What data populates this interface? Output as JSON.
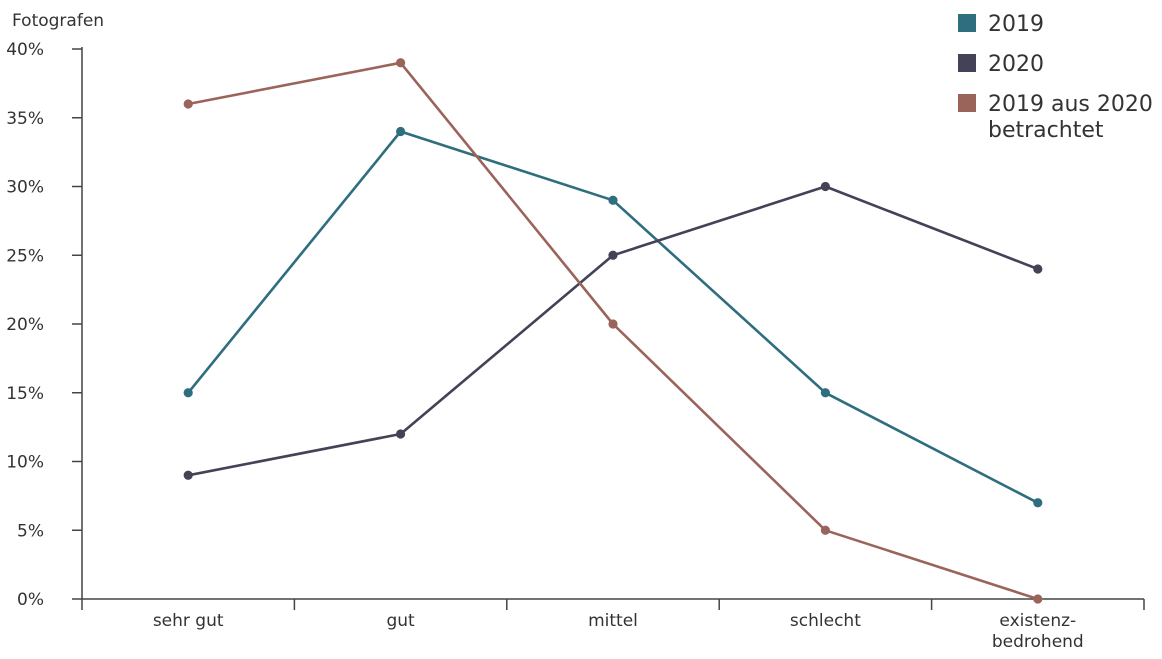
{
  "chart_data": {
    "type": "line",
    "ylabel": "Fotografen",
    "ylim": [
      0,
      40
    ],
    "y_ticks": [
      "0%",
      "5%",
      "10%",
      "15%",
      "20%",
      "25%",
      "30%",
      "35%",
      "40%"
    ],
    "categories": [
      [
        "sehr gut"
      ],
      [
        "gut"
      ],
      [
        "mittel"
      ],
      [
        "schlecht"
      ],
      [
        "existenz-",
        "bedrohend"
      ]
    ],
    "legend_position": "top-right",
    "series": [
      {
        "name": "2019",
        "color": "#2e6e7e",
        "values": [
          15,
          34,
          29,
          15,
          7
        ]
      },
      {
        "name": "2020",
        "color": "#434256",
        "values": [
          9,
          12,
          25,
          30,
          24
        ]
      },
      {
        "name": [
          "2019 aus 2020",
          "betrachtet"
        ],
        "color": "#9b645b",
        "values": [
          36,
          39,
          20,
          5,
          0
        ]
      }
    ]
  }
}
